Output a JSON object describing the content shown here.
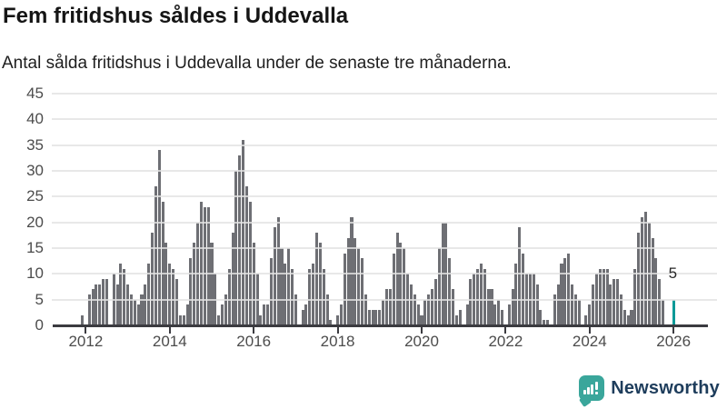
{
  "header": {
    "title": "Fem fritidshus såldes i Uddevalla",
    "subtitle": "Antal sålda fritidshus i Uddevalla under de senaste tre månaderna."
  },
  "chart_data": {
    "type": "bar",
    "title": "Fem fritidshus såldes i Uddevalla",
    "subtitle": "Antal sålda fritidshus i Uddevalla under de senaste tre månaderna.",
    "xlabel": "",
    "ylabel": "",
    "ylim": [
      0,
      45
    ],
    "yticks": [
      0,
      5,
      10,
      15,
      20,
      25,
      30,
      35,
      40,
      45
    ],
    "grid": true,
    "legend": false,
    "x_unit": "month",
    "x_start": "2011-12",
    "values": [
      2,
      0,
      6,
      7,
      8,
      8,
      9,
      9,
      0,
      10,
      8,
      12,
      11,
      8,
      6,
      5,
      4,
      6,
      8,
      12,
      18,
      27,
      34,
      24,
      16,
      12,
      11,
      9,
      2,
      2,
      4,
      13,
      16,
      20,
      24,
      23,
      23,
      16,
      10,
      2,
      4,
      6,
      11,
      18,
      30,
      33,
      36,
      27,
      24,
      16,
      10,
      2,
      4,
      4,
      13,
      19,
      21,
      15,
      12,
      15,
      11,
      6,
      0,
      3,
      4,
      11,
      12,
      18,
      16,
      11,
      6,
      1,
      0,
      2,
      4,
      14,
      17,
      21,
      17,
      15,
      13,
      6,
      3,
      3,
      3,
      3,
      5,
      7,
      7,
      14,
      18,
      16,
      15,
      10,
      8,
      6,
      4,
      2,
      5,
      6,
      7,
      9,
      15,
      20,
      20,
      13,
      7,
      2,
      3,
      0,
      4,
      9,
      10,
      11,
      12,
      11,
      7,
      7,
      4,
      5,
      3,
      0,
      4,
      7,
      12,
      19,
      14,
      10,
      10,
      10,
      8,
      3,
      1,
      1,
      0,
      6,
      8,
      12,
      13,
      14,
      8,
      6,
      5,
      0,
      2,
      4,
      8,
      10,
      11,
      11,
      11,
      8,
      9,
      9,
      6,
      3,
      2,
      3,
      11,
      18,
      21,
      22,
      20,
      17,
      13,
      9,
      5,
      0,
      0,
      5
    ],
    "year_ticks": [
      {
        "label": "2012",
        "index": 1
      },
      {
        "label": "2014",
        "index": 25
      },
      {
        "label": "2016",
        "index": 49
      },
      {
        "label": "2018",
        "index": 73
      },
      {
        "label": "2020",
        "index": 97
      },
      {
        "label": "2022",
        "index": 121
      },
      {
        "label": "2024",
        "index": 145
      },
      {
        "label": "2026",
        "index": 169
      }
    ],
    "highlight": {
      "index": 169,
      "value": 5,
      "label": "5"
    }
  },
  "colors": {
    "bar": "#6e6f74",
    "highlight": "#0c9a98",
    "grid": "#e4e4e4",
    "axis": "#3b3b40",
    "tick_label": "#4c4c4c",
    "annotation": "#262626",
    "logo_teal": "#3aa69b",
    "logo_text": "#1e3d5c"
  },
  "footer": {
    "brand": "Newsworthy"
  }
}
